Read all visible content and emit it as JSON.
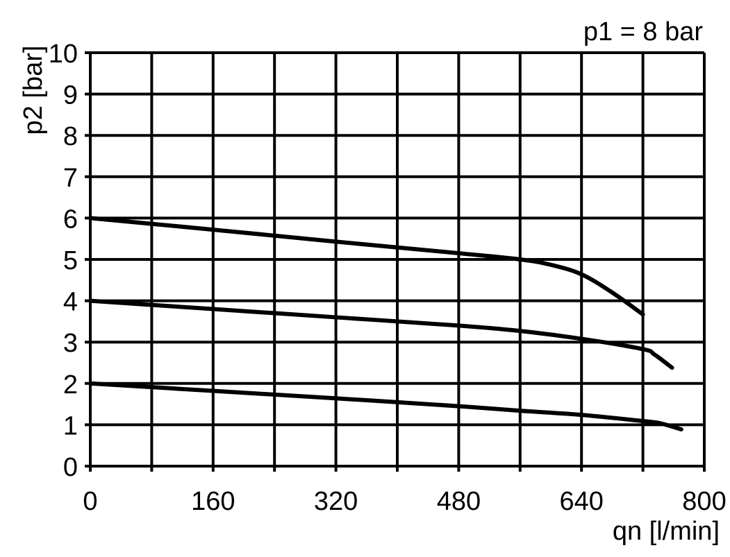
{
  "chart_data": {
    "type": "line",
    "title": "p1 = 8 bar",
    "xlabel": "qn [l/min]",
    "ylabel": "p2 [bar]",
    "xlim": [
      0,
      800
    ],
    "ylim": [
      0,
      10
    ],
    "grid": true,
    "x_ticks": [
      0,
      80,
      160,
      240,
      320,
      400,
      480,
      560,
      640,
      720,
      800
    ],
    "x_tick_labels": [
      "0",
      "160",
      "320",
      "480",
      "640",
      "800"
    ],
    "y_ticks": [
      0,
      1,
      2,
      3,
      4,
      5,
      6,
      7,
      8,
      9,
      10
    ],
    "y_tick_labels": [
      "0",
      "1",
      "2",
      "3",
      "4",
      "5",
      "6",
      "7",
      "8",
      "9",
      "10"
    ],
    "line_color": "#000000",
    "series": [
      {
        "x": [
          0,
          160,
          320,
          480,
          560,
          600,
          640,
          680,
          720
        ],
        "y": [
          6.0,
          5.72,
          5.43,
          5.15,
          5.0,
          4.87,
          4.64,
          4.2,
          3.67
        ]
      },
      {
        "x": [
          0,
          160,
          320,
          480,
          560,
          640,
          720,
          735,
          758
        ],
        "y": [
          4.0,
          3.8,
          3.6,
          3.4,
          3.27,
          3.08,
          2.83,
          2.7,
          2.38
        ]
      },
      {
        "x": [
          0,
          160,
          320,
          480,
          560,
          640,
          720,
          742,
          770
        ],
        "y": [
          2.0,
          1.82,
          1.64,
          1.45,
          1.34,
          1.24,
          1.09,
          1.04,
          0.89
        ]
      }
    ]
  }
}
